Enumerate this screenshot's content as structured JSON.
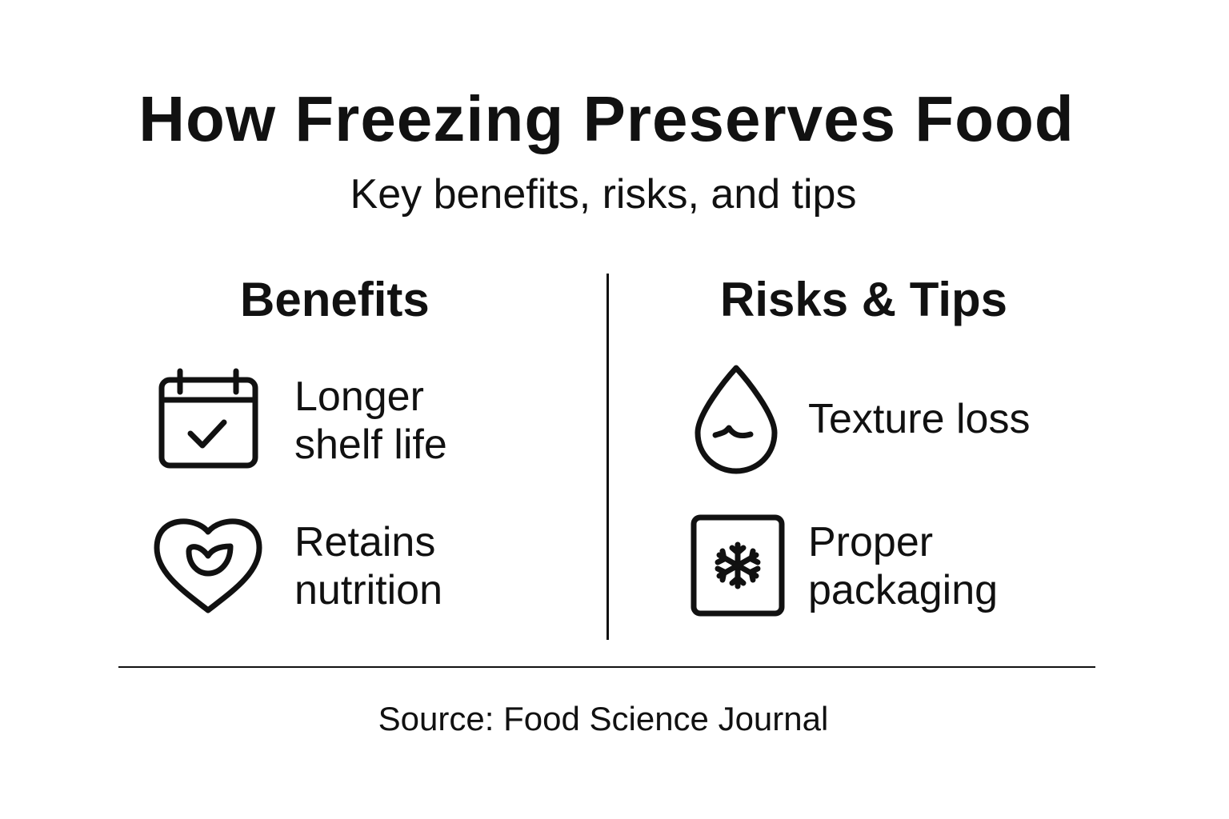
{
  "title": "How Freezing Preserves Food",
  "subtitle": "Key benefits, risks, and tips",
  "benefits": {
    "heading": "Benefits",
    "items": [
      {
        "icon": "calendar-check-icon",
        "line1": "Longer",
        "line2": "shelf life"
      },
      {
        "icon": "heart-leaf-icon",
        "line1": "Retains",
        "line2": "nutrition"
      }
    ]
  },
  "risks": {
    "heading": "Risks & Tips",
    "items": [
      {
        "icon": "water-drop-icon",
        "line1": "Texture loss",
        "line2": ""
      },
      {
        "icon": "snowflake-box-icon",
        "line1": "Proper",
        "line2": "packaging"
      }
    ]
  },
  "source": "Source: Food Science Journal"
}
